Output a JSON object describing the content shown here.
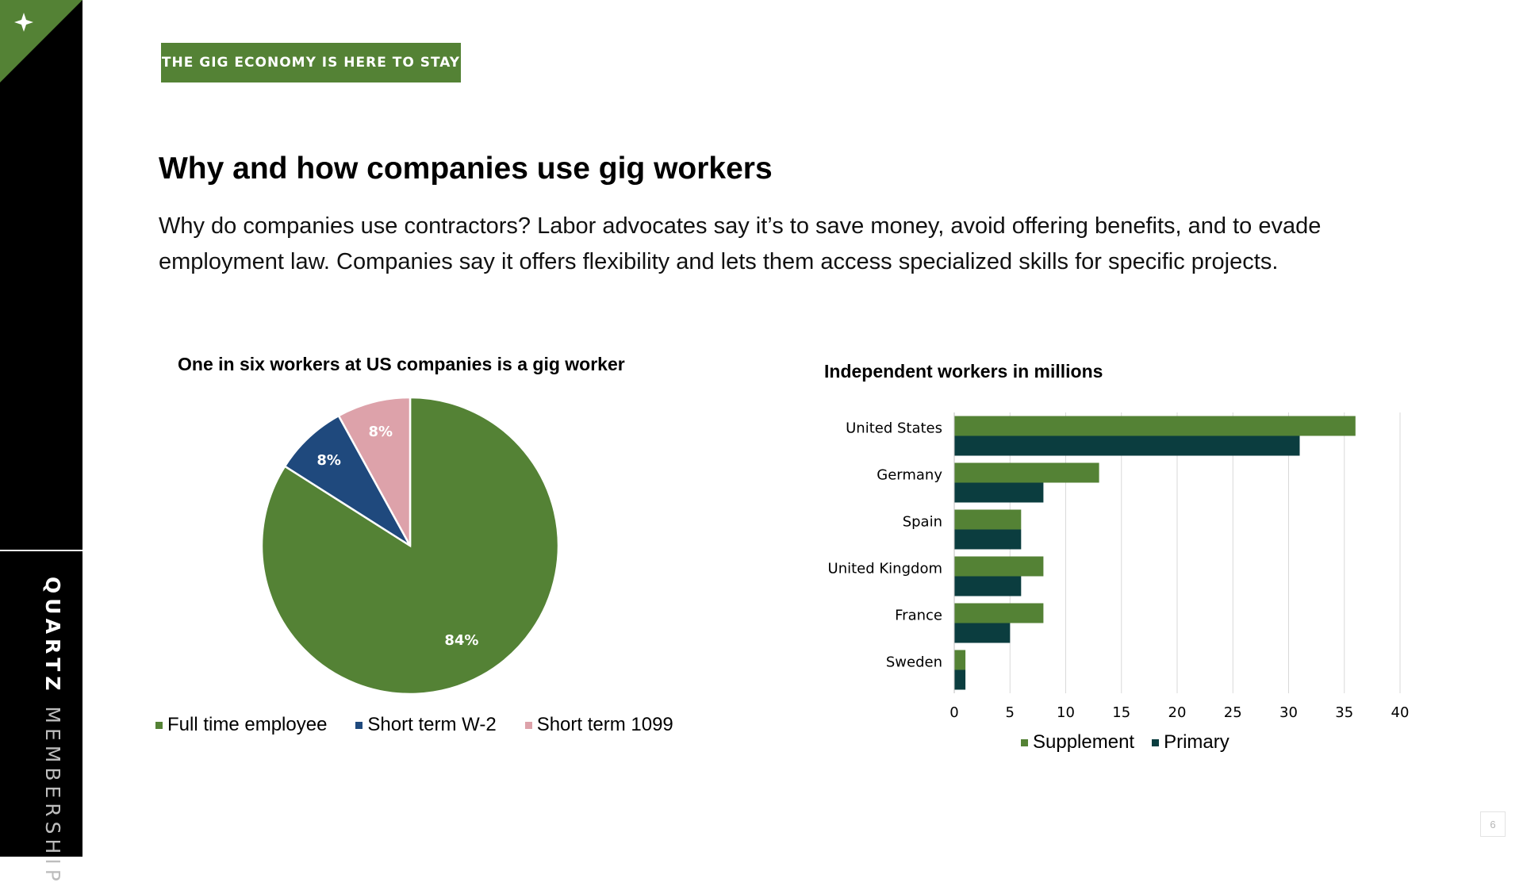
{
  "sidebar": {
    "brand_strong": "QUARTZ",
    "brand_light": " MEMBERSHIP"
  },
  "header": {
    "section_tag": "THE GIG ECONOMY IS HERE TO STAY",
    "title": "Why and how companies use gig workers",
    "body": "Why do companies use contractors? Labor advocates say it’s to save money, avoid offering benefits, and to evade employment law. Companies say it offers flexibility and lets them access specialized skills for specific projects."
  },
  "page_number": "6",
  "colors": {
    "accent_green": "#548235",
    "navy": "#1f497d",
    "pink": "#dda2aa",
    "dark_teal": "#0b3d3f",
    "sidebar_black": "#000000"
  },
  "chart_data": [
    {
      "type": "pie",
      "title": "One in six workers at US companies is a gig worker",
      "categories": [
        "Full time employee",
        "Short term W-2",
        "Short term 1099"
      ],
      "values": [
        84,
        8,
        8
      ],
      "labels": [
        "84%",
        "8%",
        "8%"
      ],
      "colors": [
        "#548235",
        "#1f497d",
        "#dda2aa"
      ],
      "legend": "bottom"
    },
    {
      "type": "bar",
      "orientation": "horizontal",
      "title": "Independent workers in millions",
      "categories": [
        "United States",
        "Germany",
        "Spain",
        "United Kingdom",
        "France",
        "Sweden"
      ],
      "series": [
        {
          "name": "Supplement",
          "values": [
            36,
            13,
            6,
            8,
            8,
            1
          ],
          "color": "#548235"
        },
        {
          "name": "Primary",
          "values": [
            31,
            8,
            6,
            6,
            5,
            1
          ],
          "color": "#0b3d3f"
        }
      ],
      "xlim": [
        0,
        40
      ],
      "xticks": [
        0,
        5,
        10,
        15,
        20,
        25,
        30,
        35,
        40
      ],
      "grid": "vertical",
      "legend": "bottom"
    }
  ]
}
